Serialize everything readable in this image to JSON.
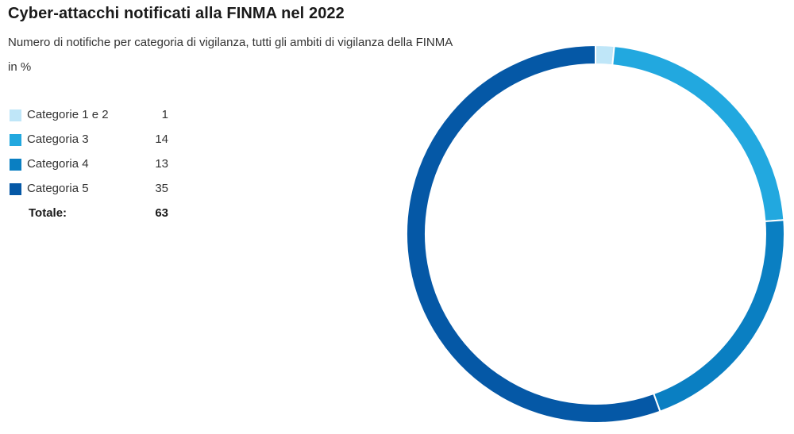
{
  "title": "Cyber-attacchi notificati alla FINMA nel 2022",
  "subtitle": "Numero di notifiche per categoria di vigilanza, tutti gli ambiti di vigilanza della FINMA",
  "unit": "in %",
  "chart_data": {
    "type": "pie",
    "categories": [
      "Categorie 1 e 2",
      "Categoria 3",
      "Categoria 4",
      "Categoria 5"
    ],
    "values": [
      1,
      14,
      13,
      35
    ],
    "display_values": [
      "1",
      "14",
      "13",
      "35"
    ],
    "colors": [
      "#bfe6f8",
      "#22a8df",
      "#0a7fc2",
      "#0558a6"
    ],
    "total_label": "Totale:",
    "total_value": "63",
    "donut": true,
    "legend_position": "left"
  }
}
